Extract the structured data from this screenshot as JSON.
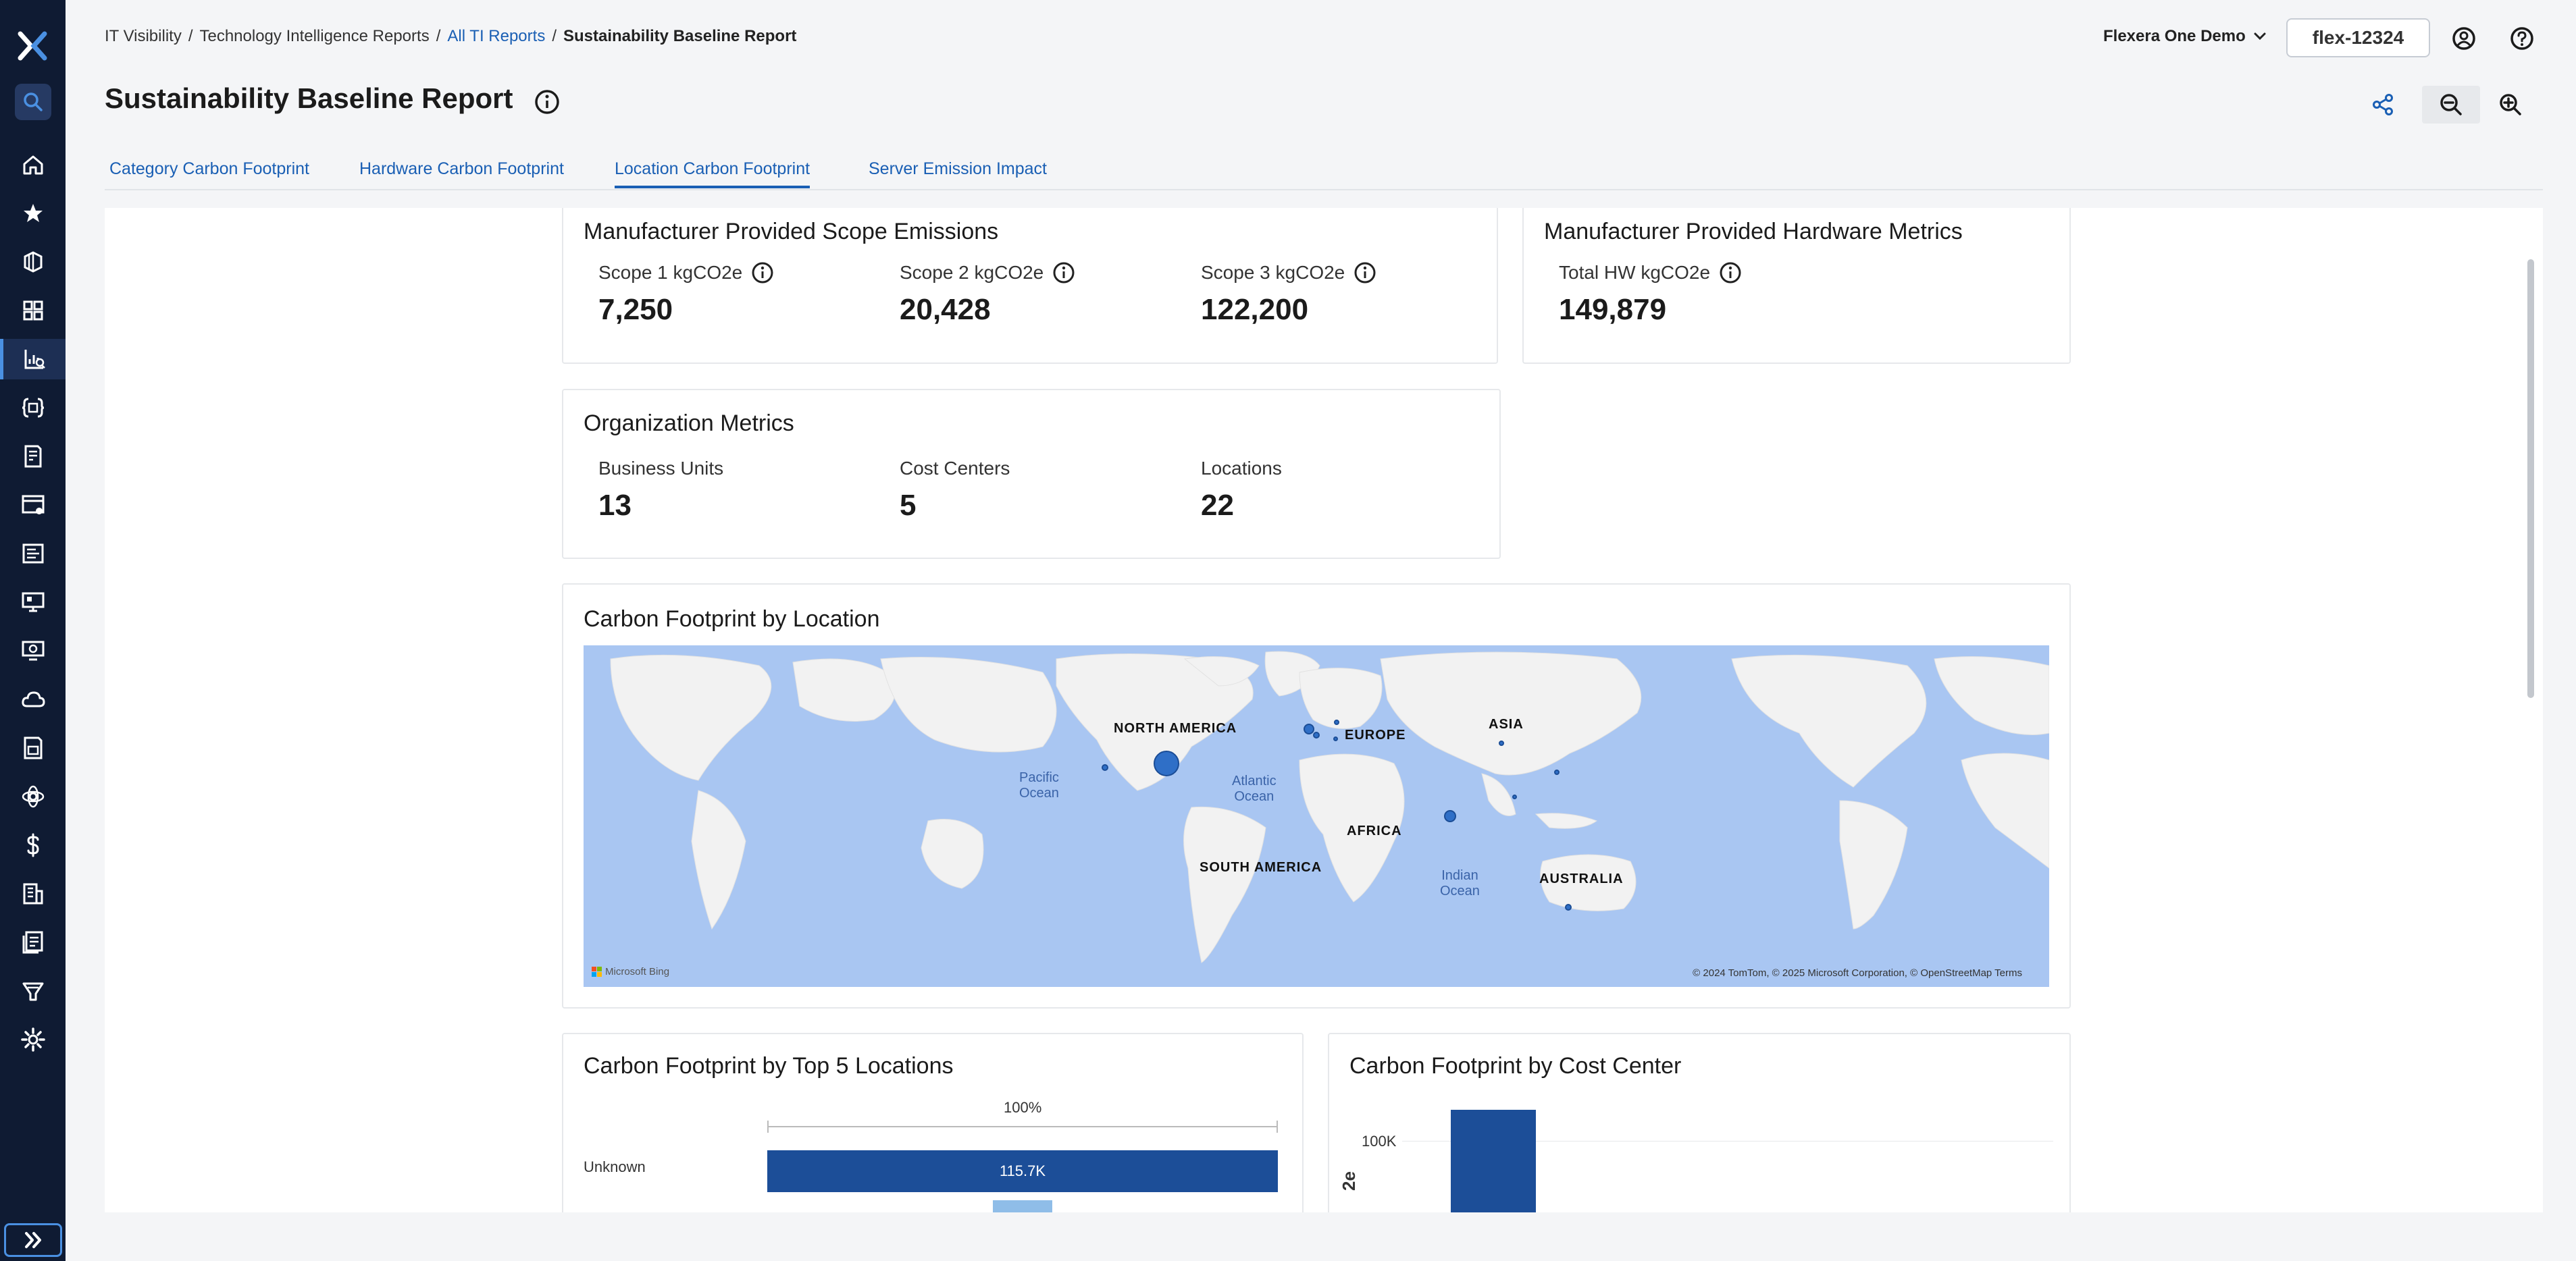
{
  "breadcrumb": {
    "items": [
      "IT Visibility",
      "Technology Intelligence Reports",
      "All TI Reports",
      "Sustainability Baseline Report"
    ],
    "separator": "/"
  },
  "header": {
    "org_name": "Flexera One Demo",
    "tenant_id": "flex-12324",
    "page_title": "Sustainability Baseline Report"
  },
  "tabs": [
    {
      "label": "Category Carbon Footprint"
    },
    {
      "label": "Hardware Carbon Footprint"
    },
    {
      "label": "Location Carbon Footprint"
    },
    {
      "label": "Server Emission Impact"
    }
  ],
  "active_tab": "Location Carbon Footprint",
  "scope_emissions": {
    "title": "Manufacturer Provided Scope Emissions",
    "metrics": [
      {
        "label": "Scope 1 kgCO2e",
        "value": "7,250"
      },
      {
        "label": "Scope 2 kgCO2e",
        "value": "20,428"
      },
      {
        "label": "Scope 3 kgCO2e",
        "value": "122,200"
      }
    ]
  },
  "hardware_metrics": {
    "title": "Manufacturer Provided Hardware Metrics",
    "metrics": [
      {
        "label": "Total HW kgCO2e",
        "value": "149,879"
      }
    ]
  },
  "org_metrics": {
    "title": "Organization Metrics",
    "metrics": [
      {
        "label": "Business Units",
        "value": "13"
      },
      {
        "label": "Cost Centers",
        "value": "5"
      },
      {
        "label": "Locations",
        "value": "22"
      }
    ]
  },
  "map": {
    "title": "Carbon Footprint by Location",
    "continents": [
      "NORTH AMERICA",
      "EUROPE",
      "ASIA",
      "AFRICA",
      "SOUTH AMERICA",
      "AUSTRALIA"
    ],
    "oceans": [
      "Pacific\nOcean",
      "Atlantic\nOcean",
      "Indian\nOcean"
    ],
    "attribution": "© 2024 TomTom, © 2025 Microsoft Corporation, © OpenStreetMap  Terms",
    "provider": "Microsoft Bing",
    "colors": {
      "water": "#a9c6f2",
      "land": "#f2f2f2",
      "bubble": "#2f6fc7"
    }
  },
  "top5_locations": {
    "title": "Carbon Footprint by Top 5 Locations",
    "axis_max_label": "100%",
    "chart_data": {
      "type": "bar",
      "categories": [
        "Unknown"
      ],
      "values": [
        115700
      ],
      "value_labels": [
        "115.7K"
      ]
    }
  },
  "cost_center": {
    "title": "Carbon Footprint by Cost Center",
    "y_tick": "100K",
    "y_label_fragment": "2e"
  },
  "colors": {
    "accent": "#1a5fb4",
    "rail": "#0f1b33",
    "bar": "#1c4e98",
    "bar_light": "#8fbde8"
  }
}
